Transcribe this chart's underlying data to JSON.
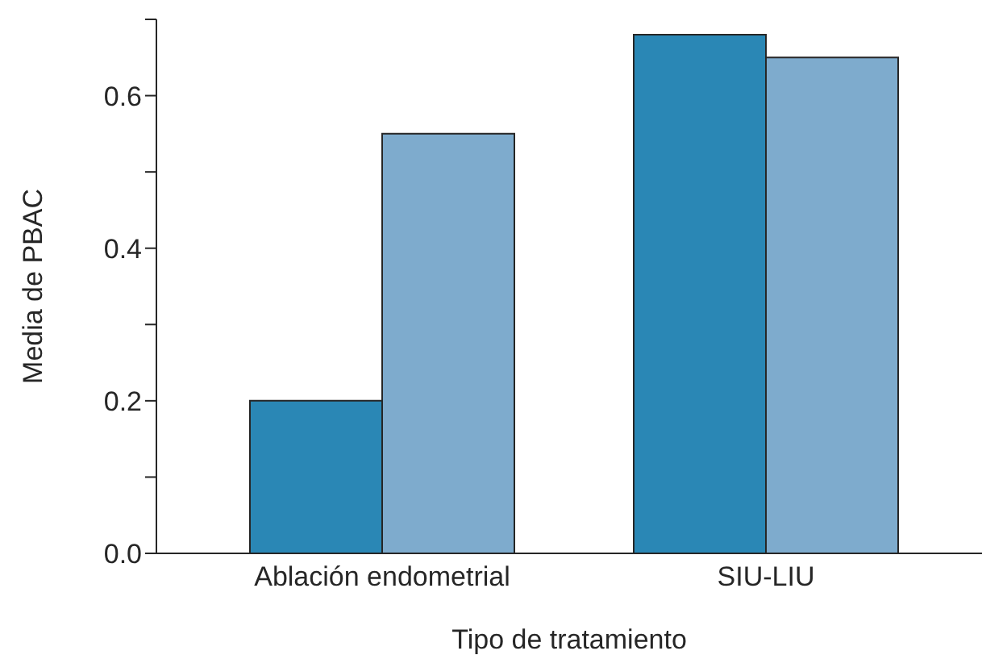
{
  "chart_data": {
    "type": "bar",
    "xlabel": "Tipo de tratamiento",
    "ylabel": "Media de PBAC",
    "categories": [
      "Ablación endometrial",
      "SIU-LIU"
    ],
    "series": [
      {
        "color": "#2a87b5",
        "values": [
          0.2,
          0.68
        ]
      },
      {
        "color": "#7eabcd",
        "values": [
          0.55,
          0.65
        ]
      }
    ],
    "ylim": [
      0,
      0.7
    ],
    "yticks": [
      {
        "value": 0,
        "label": "0.0"
      },
      {
        "value": 0.1,
        "label": null
      },
      0.2,
      {
        "value": 0.3,
        "label": null
      },
      0.4,
      {
        "value": 0.5,
        "label": null
      },
      0.6,
      {
        "value": 0.7,
        "label": null
      }
    ],
    "grid": false,
    "legend": false
  }
}
